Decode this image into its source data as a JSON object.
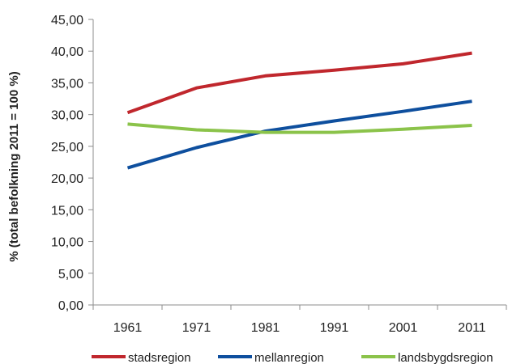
{
  "chart_data": {
    "type": "line",
    "title": "",
    "xlabel": "",
    "ylabel": "% (total befolkning 2011 = 100 %)",
    "categories": [
      "1961",
      "1971",
      "1981",
      "1991",
      "2001",
      "2011"
    ],
    "ylim": [
      0,
      45
    ],
    "yticks": [
      "0,00",
      "5,00",
      "10,00",
      "15,00",
      "20,00",
      "25,00",
      "30,00",
      "35,00",
      "40,00",
      "45,00"
    ],
    "grid": false,
    "legend_position": "bottom",
    "series": [
      {
        "name": "stadsregion",
        "color": "#c0272d",
        "values": [
          30.3,
          34.2,
          36.1,
          37.0,
          38.0,
          39.7
        ]
      },
      {
        "name": "mellanregion",
        "color": "#0e4f9e",
        "values": [
          21.6,
          24.8,
          27.4,
          29.0,
          30.5,
          32.1
        ]
      },
      {
        "name": "landsbygdsregion",
        "color": "#8bc34a",
        "values": [
          28.5,
          27.6,
          27.2,
          27.2,
          27.7,
          28.3
        ]
      }
    ]
  }
}
